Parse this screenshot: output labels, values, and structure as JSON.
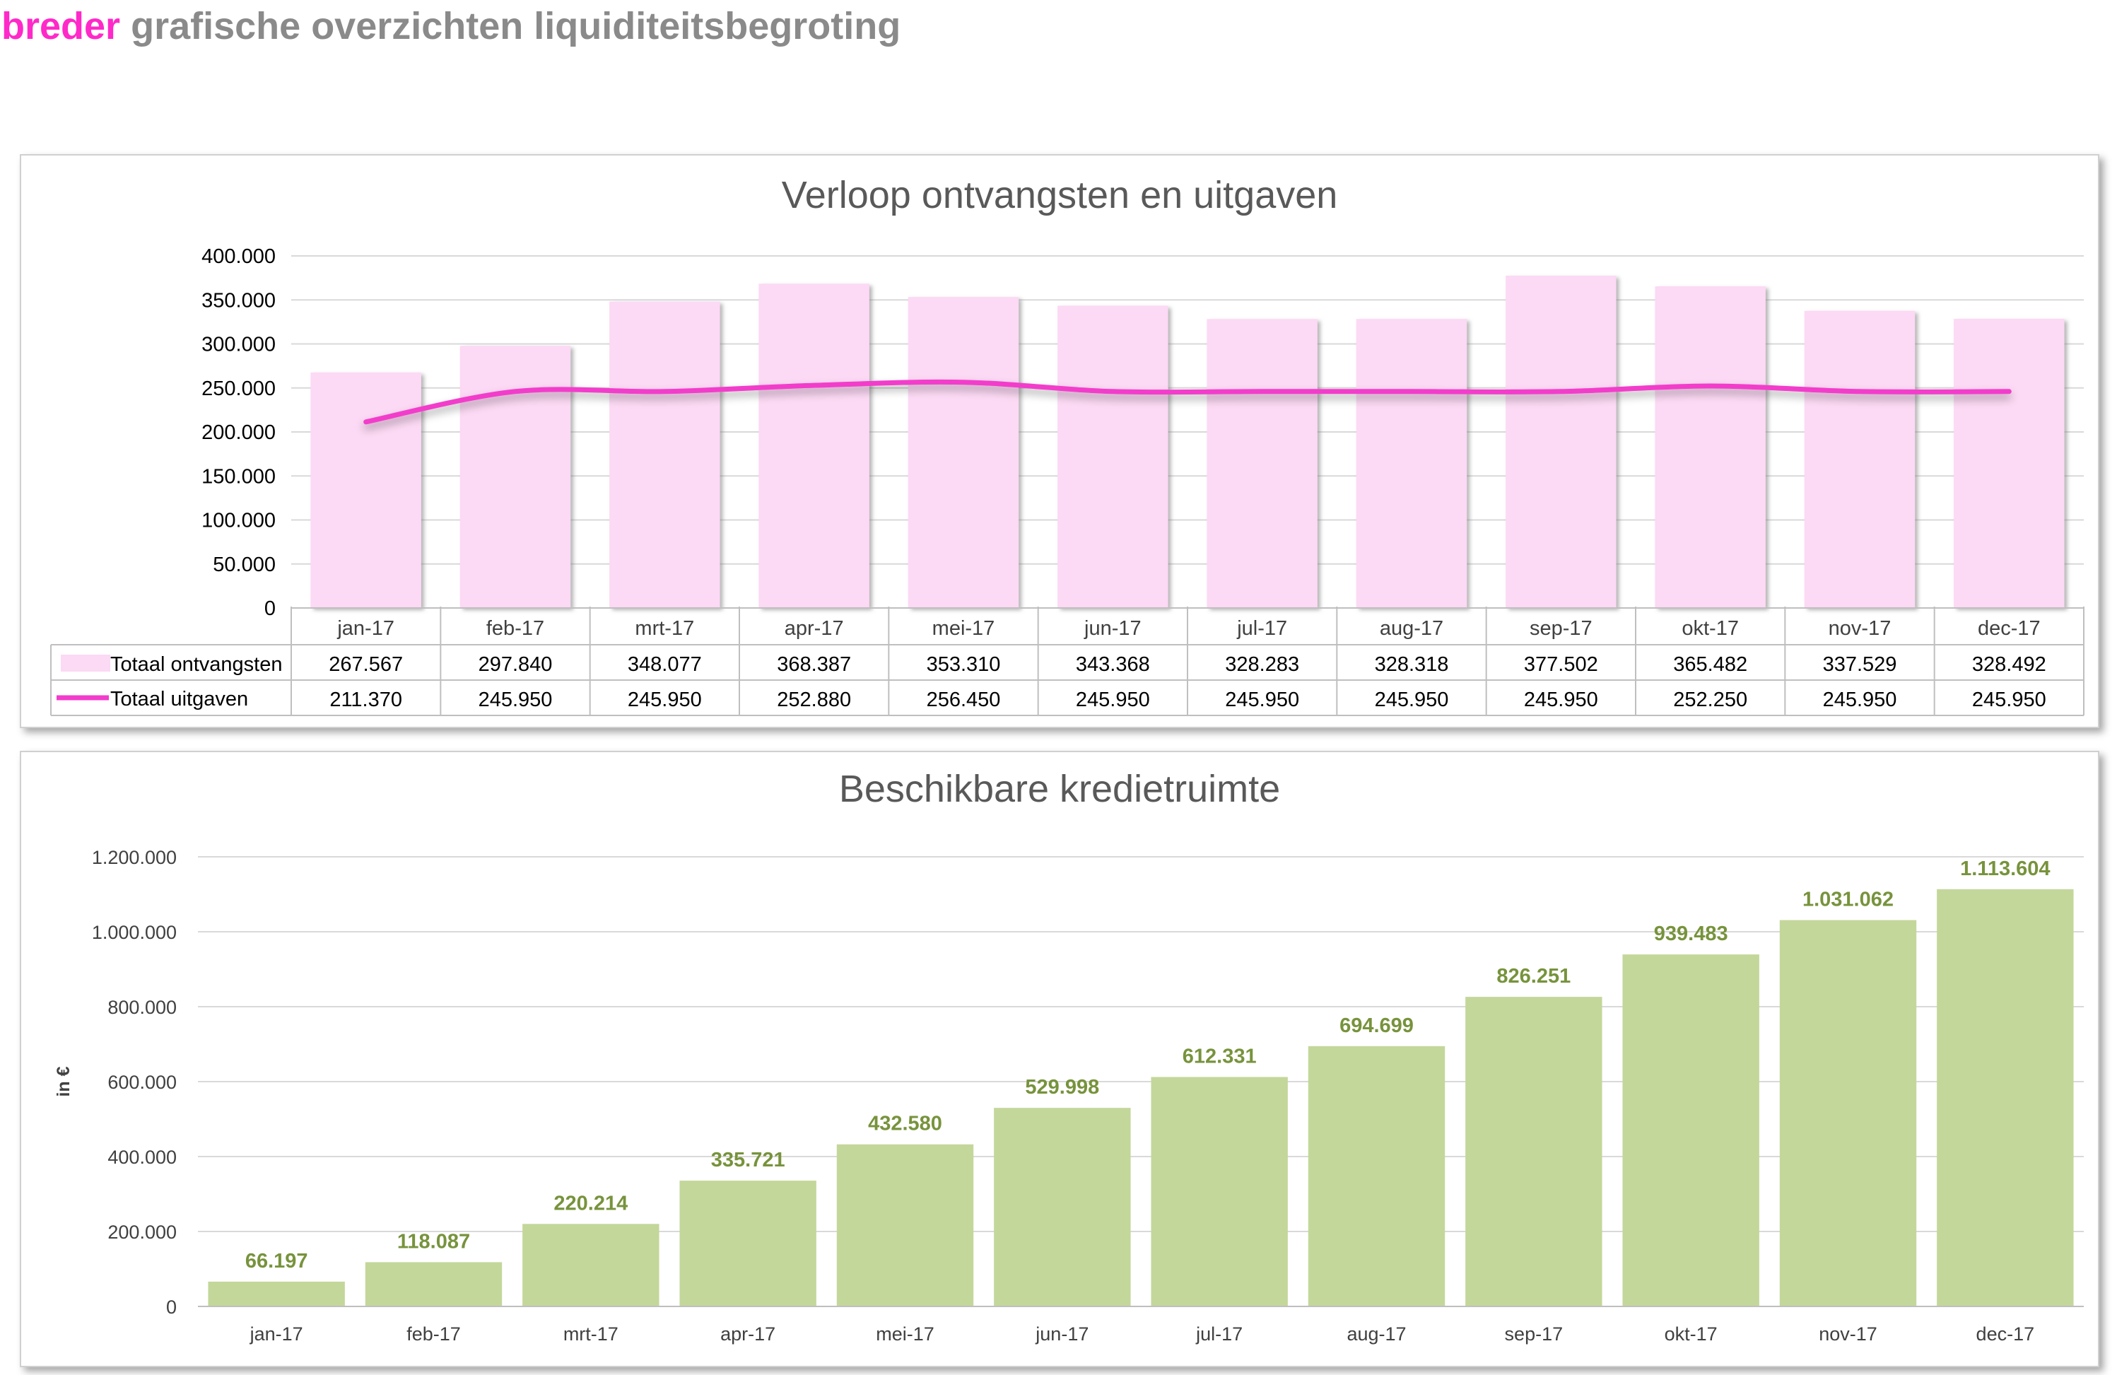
{
  "header": {
    "brand": "breder",
    "title": "grafische overzichten liquiditeitsbegroting"
  },
  "colors": {
    "brand": "#ff29c9",
    "title_gray": "#8a8a8a",
    "bar_pink": "#fcd9f4",
    "line_magenta": "#f23ccb",
    "bar_green": "#c4d79b",
    "label_green": "#77933c"
  },
  "chart_data": [
    {
      "type": "bar",
      "title": "Verloop ontvangsten en uitgaven",
      "categories": [
        "jan-17",
        "feb-17",
        "mrt-17",
        "apr-17",
        "mei-17",
        "jun-17",
        "jul-17",
        "aug-17",
        "sep-17",
        "okt-17",
        "nov-17",
        "dec-17"
      ],
      "ylim": [
        0,
        400000
      ],
      "yticks": [
        "0",
        "50.000",
        "100.000",
        "150.000",
        "200.000",
        "250.000",
        "300.000",
        "350.000",
        "400.000"
      ],
      "grid": true,
      "legend": "data-table",
      "series": [
        {
          "name": "Totaal ontvangsten",
          "kind": "bar",
          "values": [
            267567,
            297840,
            348077,
            368387,
            353310,
            343368,
            328283,
            328318,
            377502,
            365482,
            337529,
            328492
          ],
          "labels": [
            "267.567",
            "297.840",
            "348.077",
            "368.387",
            "353.310",
            "343.368",
            "328.283",
            "328.318",
            "377.502",
            "365.482",
            "337.529",
            "328.492"
          ]
        },
        {
          "name": "Totaal uitgaven",
          "kind": "line",
          "values": [
            211370,
            245950,
            245950,
            252880,
            256450,
            245950,
            245950,
            245950,
            245950,
            252250,
            245950,
            245950
          ],
          "labels": [
            "211.370",
            "245.950",
            "245.950",
            "252.880",
            "256.450",
            "245.950",
            "245.950",
            "245.950",
            "245.950",
            "252.250",
            "245.950",
            "245.950"
          ]
        }
      ]
    },
    {
      "type": "bar",
      "title": "Beschikbare kredietruimte",
      "ylabel": "in €",
      "categories": [
        "jan-17",
        "feb-17",
        "mrt-17",
        "apr-17",
        "mei-17",
        "jun-17",
        "jul-17",
        "aug-17",
        "sep-17",
        "okt-17",
        "nov-17",
        "dec-17"
      ],
      "ylim": [
        0,
        1200000
      ],
      "yticks": [
        "0",
        "200.000",
        "400.000",
        "600.000",
        "800.000",
        "1.000.000",
        "1.200.000"
      ],
      "grid": true,
      "values": [
        66197,
        118087,
        220214,
        335721,
        432580,
        529998,
        612331,
        694699,
        826251,
        939483,
        1031062,
        1113604
      ],
      "labels": [
        "66.197",
        "118.087",
        "220.214",
        "335.721",
        "432.580",
        "529.998",
        "612.331",
        "694.699",
        "826.251",
        "939.483",
        "1.031.062",
        "1.113.604"
      ]
    }
  ]
}
